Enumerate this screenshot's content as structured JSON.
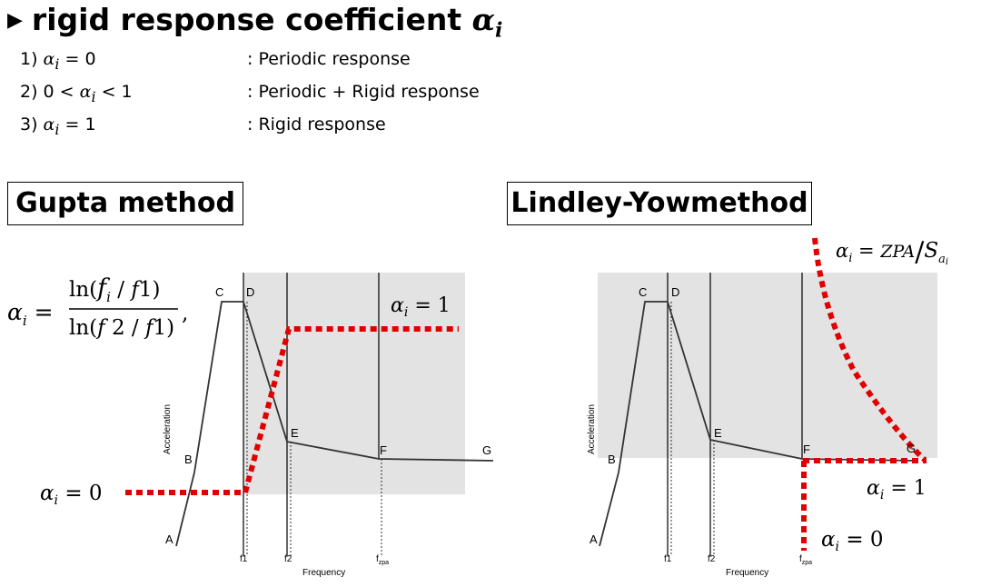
{
  "heading": {
    "text": "rigid response coefficient",
    "symbol": "αi"
  },
  "cases": [
    {
      "cond": "1) αi = 0",
      "desc": ": Periodic response"
    },
    {
      "cond": "2) 0 < αi < 1",
      "desc": ": Periodic + Rigid response"
    },
    {
      "cond": "3) αi = 1",
      "desc": ": Rigid response"
    }
  ],
  "gupta": {
    "title": "Gupta method",
    "formula": {
      "lhs": "αi =",
      "numerator": "ln(fi / f1)",
      "denominator": "ln(f2 / f1)",
      "suffix": ","
    },
    "alpha_one": "αi = 1",
    "alpha_zero": "αi = 0",
    "points": {
      "A": "A",
      "B": "B",
      "C": "C",
      "D": "D",
      "E": "E",
      "F": "F",
      "G": "G"
    },
    "ticks": {
      "f1": "f1",
      "f2": "f2",
      "fzpa": "f",
      "fzpa_sub": "zpa"
    },
    "ylabel": "Acceleration",
    "xlabel": "Frequency"
  },
  "lindley": {
    "title": "Lindley-Yowmethod",
    "formula": {
      "text": "αi = ZPA/Sai"
    },
    "alpha_one": "αi = 1",
    "alpha_zero": "αi = 0",
    "points": {
      "A": "A",
      "B": "B",
      "C": "C",
      "D": "D",
      "E": "E",
      "F": "F",
      "G": "G"
    },
    "ticks": {
      "f1": "f1",
      "f2": "f2",
      "fzpa": "f",
      "fzpa_sub": "zpa"
    },
    "ylabel": "Acceleration",
    "xlabel": "Frequency"
  },
  "colors": {
    "curve": "#333333",
    "shade": "#e3e3e3",
    "dotted": "#e00000"
  }
}
